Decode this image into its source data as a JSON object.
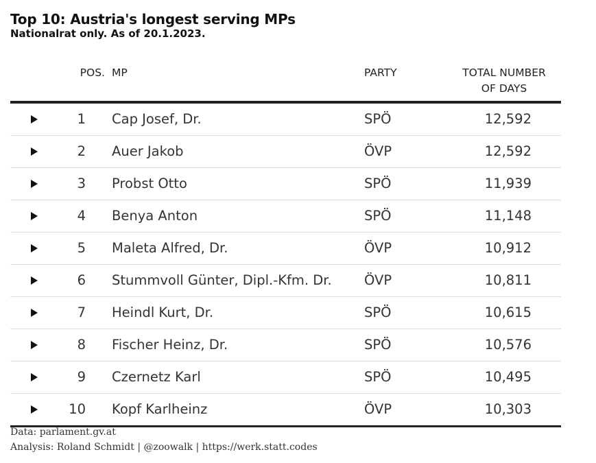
{
  "title": "Top 10: Austria's longest serving MPs",
  "subtitle": "Nationalrat only. As of 20.1.2023.",
  "columns": {
    "pos": "POS.",
    "mp": "MP",
    "party": "PARTY",
    "days_line1": "TOTAL NUMBER",
    "days_line2": "OF DAYS"
  },
  "rows": [
    {
      "pos": "1",
      "mp": "Cap Josef, Dr.",
      "party": "SPÖ",
      "days": "12,592"
    },
    {
      "pos": "2",
      "mp": "Auer Jakob",
      "party": "ÖVP",
      "days": "12,592"
    },
    {
      "pos": "3",
      "mp": "Probst Otto",
      "party": "SPÖ",
      "days": "11,939"
    },
    {
      "pos": "4",
      "mp": "Benya Anton",
      "party": "SPÖ",
      "days": "11,148"
    },
    {
      "pos": "5",
      "mp": "Maleta Alfred, Dr.",
      "party": "ÖVP",
      "days": "10,912"
    },
    {
      "pos": "6",
      "mp": "Stummvoll Günter, Dipl.-Kfm. Dr.",
      "party": "ÖVP",
      "days": "10,811"
    },
    {
      "pos": "7",
      "mp": "Heindl Kurt, Dr.",
      "party": "SPÖ",
      "days": "10,615"
    },
    {
      "pos": "8",
      "mp": "Fischer Heinz, Dr.",
      "party": "SPÖ",
      "days": "10,576"
    },
    {
      "pos": "9",
      "mp": "Czernetz Karl",
      "party": "SPÖ",
      "days": "10,495"
    },
    {
      "pos": "10",
      "mp": "Kopf Karlheinz",
      "party": "ÖVP",
      "days": "10,303"
    }
  ],
  "footer": {
    "data_source": "Data: parlament.gv.at",
    "analysis": "Analysis: Roland Schmidt | @zoowalk | https://werk.statt.codes"
  },
  "icons": {
    "row_expand": "triangle-right-icon"
  }
}
